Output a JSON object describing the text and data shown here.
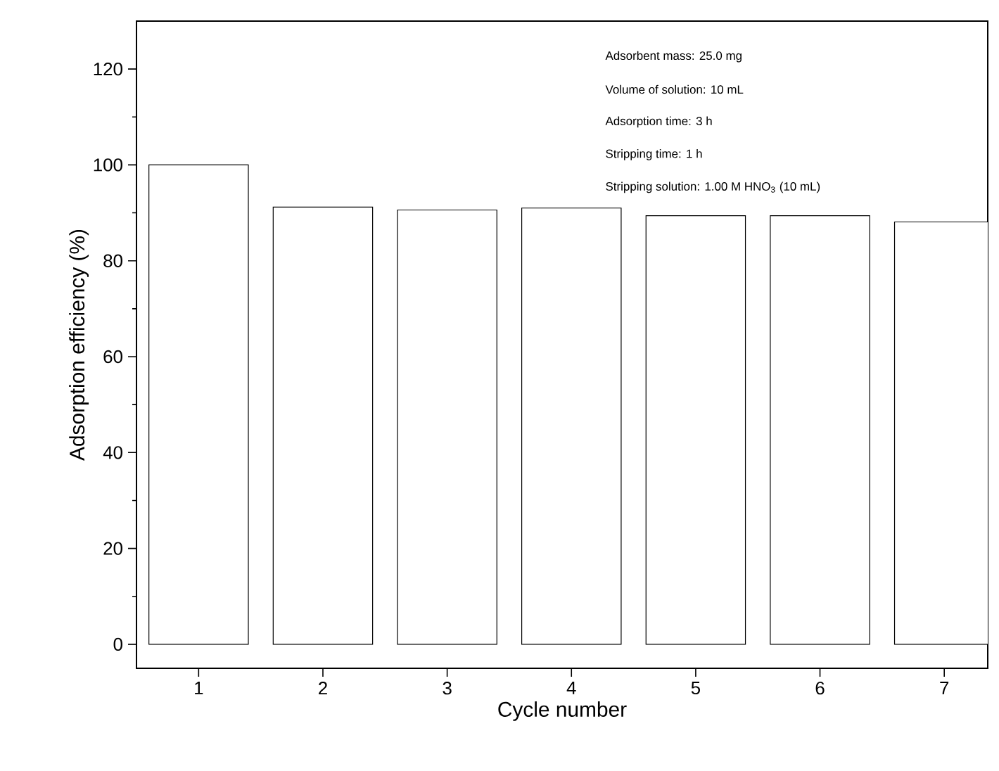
{
  "chart_data": {
    "type": "bar",
    "xlabel": "Cycle number",
    "ylabel": "Adsorption efficiency (%)",
    "categories": [
      "1",
      "2",
      "3",
      "4",
      "5",
      "6",
      "7"
    ],
    "values": [
      100,
      91.2,
      90.6,
      91.0,
      89.4,
      89.4,
      88.1
    ],
    "color": "#ffffff",
    "ylim": [
      -5,
      130
    ],
    "yticks": [
      0,
      20,
      40,
      60,
      80,
      100,
      120
    ],
    "annotations": [
      "Adsorbent mass: 25.0 mg",
      "Volume of solution: 10 mL",
      "Adsorption time: 3 h",
      "Stripping time: 1 h",
      "Stripping solution: 1.00 M HNO$_{3}$ (10 mL)"
    ]
  }
}
